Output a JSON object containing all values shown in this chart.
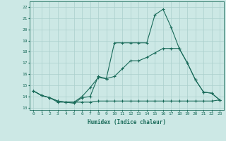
{
  "xlabel": "Humidex (Indice chaleur)",
  "bg_color": "#cce8e5",
  "grid_color": "#aacfcc",
  "line_color": "#1a6b5a",
  "x_ticks": [
    0,
    1,
    2,
    3,
    4,
    5,
    6,
    7,
    8,
    9,
    10,
    11,
    12,
    13,
    14,
    15,
    16,
    17,
    18,
    19,
    20,
    21,
    22,
    23
  ],
  "y_ticks": [
    13,
    14,
    15,
    16,
    17,
    18,
    19,
    20,
    21,
    22
  ],
  "ylim": [
    12.8,
    22.5
  ],
  "xlim": [
    -0.5,
    23.5
  ],
  "line1_x": [
    0,
    1,
    2,
    3,
    4,
    5,
    6,
    7,
    8,
    9,
    10,
    11,
    12,
    13,
    14,
    15,
    16,
    17,
    18,
    19,
    20,
    21,
    22,
    23
  ],
  "line1_y": [
    14.5,
    14.1,
    13.9,
    13.5,
    13.5,
    13.4,
    13.9,
    14.0,
    15.8,
    15.6,
    18.8,
    18.8,
    18.8,
    18.8,
    18.8,
    21.3,
    21.8,
    20.2,
    18.3,
    17.0,
    15.5,
    14.4,
    14.3,
    13.7
  ],
  "line2_x": [
    0,
    1,
    2,
    3,
    4,
    5,
    6,
    7,
    8,
    9,
    10,
    11,
    12,
    13,
    14,
    15,
    16,
    17,
    18,
    19,
    20,
    21,
    22,
    23
  ],
  "line2_y": [
    14.5,
    14.1,
    13.9,
    13.6,
    13.5,
    13.5,
    14.0,
    14.8,
    15.7,
    15.6,
    15.8,
    16.5,
    17.2,
    17.2,
    17.5,
    17.9,
    18.3,
    18.3,
    18.3,
    17.0,
    15.5,
    14.4,
    14.3,
    13.7
  ],
  "line3_x": [
    0,
    1,
    2,
    3,
    4,
    5,
    6,
    7,
    8,
    9,
    10,
    11,
    12,
    13,
    14,
    15,
    16,
    17,
    18,
    19,
    20,
    21,
    22,
    23
  ],
  "line3_y": [
    14.5,
    14.1,
    13.9,
    13.6,
    13.5,
    13.5,
    13.5,
    13.5,
    13.6,
    13.6,
    13.6,
    13.6,
    13.6,
    13.6,
    13.6,
    13.6,
    13.6,
    13.6,
    13.6,
    13.6,
    13.6,
    13.6,
    13.6,
    13.7
  ]
}
